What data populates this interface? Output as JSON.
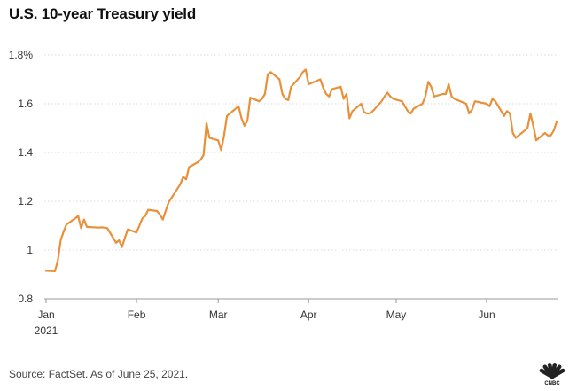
{
  "chart_data": {
    "type": "line",
    "title": "U.S. 10-year Treasury yield",
    "xlabel": "",
    "ylabel": "",
    "ylim": [
      0.8,
      1.8
    ],
    "y_ticks": [
      0.8,
      1,
      1.2,
      1.4,
      1.6,
      1.8
    ],
    "y_tick_labels": [
      "0.8",
      "1",
      "1.2",
      "1.4",
      "1.6",
      "1.8%"
    ],
    "x_ticks": [
      {
        "date": "2021-01-01",
        "label": "Jan",
        "sublabel": "2021"
      },
      {
        "date": "2021-02-01",
        "label": "Feb",
        "sublabel": ""
      },
      {
        "date": "2021-03-01",
        "label": "Mar",
        "sublabel": ""
      },
      {
        "date": "2021-04-01",
        "label": "Apr",
        "sublabel": ""
      },
      {
        "date": "2021-05-01",
        "label": "May",
        "sublabel": ""
      },
      {
        "date": "2021-06-01",
        "label": "Jun",
        "sublabel": ""
      }
    ],
    "xlim": [
      "2021-01-01",
      "2021-06-25"
    ],
    "grid": "horizontal",
    "line_color": "#e8913a",
    "series": [
      {
        "x": [
          "2021-01-01",
          "2021-01-04",
          "2021-01-05",
          "2021-01-06",
          "2021-01-07",
          "2021-01-08",
          "2021-01-11",
          "2021-01-12",
          "2021-01-13",
          "2021-01-14",
          "2021-01-15",
          "2021-01-19",
          "2021-01-20",
          "2021-01-21",
          "2021-01-22",
          "2021-01-25",
          "2021-01-26",
          "2021-01-27",
          "2021-01-28",
          "2021-01-29",
          "2021-02-01",
          "2021-02-02",
          "2021-02-03",
          "2021-02-04",
          "2021-02-05",
          "2021-02-08",
          "2021-02-09",
          "2021-02-10",
          "2021-02-11",
          "2021-02-12",
          "2021-02-16",
          "2021-02-17",
          "2021-02-18",
          "2021-02-19",
          "2021-02-22",
          "2021-02-23",
          "2021-02-24",
          "2021-02-25",
          "2021-02-26",
          "2021-03-01",
          "2021-03-02",
          "2021-03-03",
          "2021-03-04",
          "2021-03-05",
          "2021-03-08",
          "2021-03-09",
          "2021-03-10",
          "2021-03-11",
          "2021-03-12",
          "2021-03-15",
          "2021-03-16",
          "2021-03-17",
          "2021-03-18",
          "2021-03-19",
          "2021-03-22",
          "2021-03-23",
          "2021-03-24",
          "2021-03-25",
          "2021-03-26",
          "2021-03-29",
          "2021-03-30",
          "2021-03-31",
          "2021-04-01",
          "2021-04-05",
          "2021-04-06",
          "2021-04-07",
          "2021-04-08",
          "2021-04-09",
          "2021-04-12",
          "2021-04-13",
          "2021-04-14",
          "2021-04-15",
          "2021-04-16",
          "2021-04-19",
          "2021-04-20",
          "2021-04-21",
          "2021-04-22",
          "2021-04-23",
          "2021-04-26",
          "2021-04-27",
          "2021-04-28",
          "2021-04-29",
          "2021-04-30",
          "2021-05-03",
          "2021-05-04",
          "2021-05-05",
          "2021-05-06",
          "2021-05-07",
          "2021-05-10",
          "2021-05-11",
          "2021-05-12",
          "2021-05-13",
          "2021-05-14",
          "2021-05-17",
          "2021-05-18",
          "2021-05-19",
          "2021-05-20",
          "2021-05-21",
          "2021-05-24",
          "2021-05-25",
          "2021-05-26",
          "2021-05-27",
          "2021-05-28",
          "2021-06-01",
          "2021-06-02",
          "2021-06-03",
          "2021-06-04",
          "2021-06-07",
          "2021-06-08",
          "2021-06-09",
          "2021-06-10",
          "2021-06-11",
          "2021-06-14",
          "2021-06-15",
          "2021-06-16",
          "2021-06-17",
          "2021-06-18",
          "2021-06-21",
          "2021-06-22",
          "2021-06-23",
          "2021-06-24",
          "2021-06-25"
        ],
        "y": [
          0.915,
          0.913,
          0.955,
          1.04,
          1.075,
          1.105,
          1.13,
          1.14,
          1.09,
          1.125,
          1.095,
          1.092,
          1.093,
          1.092,
          1.09,
          1.03,
          1.04,
          1.012,
          1.05,
          1.085,
          1.072,
          1.1,
          1.13,
          1.14,
          1.165,
          1.16,
          1.145,
          1.125,
          1.16,
          1.195,
          1.27,
          1.3,
          1.29,
          1.34,
          1.36,
          1.37,
          1.39,
          1.52,
          1.46,
          1.45,
          1.41,
          1.47,
          1.55,
          1.56,
          1.59,
          1.54,
          1.51,
          1.53,
          1.625,
          1.61,
          1.62,
          1.64,
          1.72,
          1.73,
          1.7,
          1.64,
          1.62,
          1.615,
          1.67,
          1.71,
          1.73,
          1.74,
          1.68,
          1.7,
          1.665,
          1.64,
          1.63,
          1.66,
          1.67,
          1.62,
          1.64,
          1.54,
          1.57,
          1.6,
          1.565,
          1.56,
          1.56,
          1.57,
          1.61,
          1.63,
          1.645,
          1.63,
          1.62,
          1.61,
          1.59,
          1.57,
          1.56,
          1.58,
          1.6,
          1.63,
          1.69,
          1.67,
          1.63,
          1.64,
          1.64,
          1.68,
          1.63,
          1.62,
          1.605,
          1.6,
          1.56,
          1.575,
          1.61,
          1.6,
          1.59,
          1.62,
          1.61,
          1.55,
          1.57,
          1.56,
          1.48,
          1.46,
          1.49,
          1.5,
          1.56,
          1.51,
          1.45,
          1.48,
          1.47,
          1.47,
          1.49,
          1.525
        ]
      }
    ]
  },
  "source_note": "Source: FactSet. As of June 25, 2021.",
  "logo_text": "CNBC",
  "logo_colors": [
    "#fccc0a",
    "#f37021",
    "#cc004c",
    "#6460aa",
    "#0089d0",
    "#0db14b"
  ]
}
